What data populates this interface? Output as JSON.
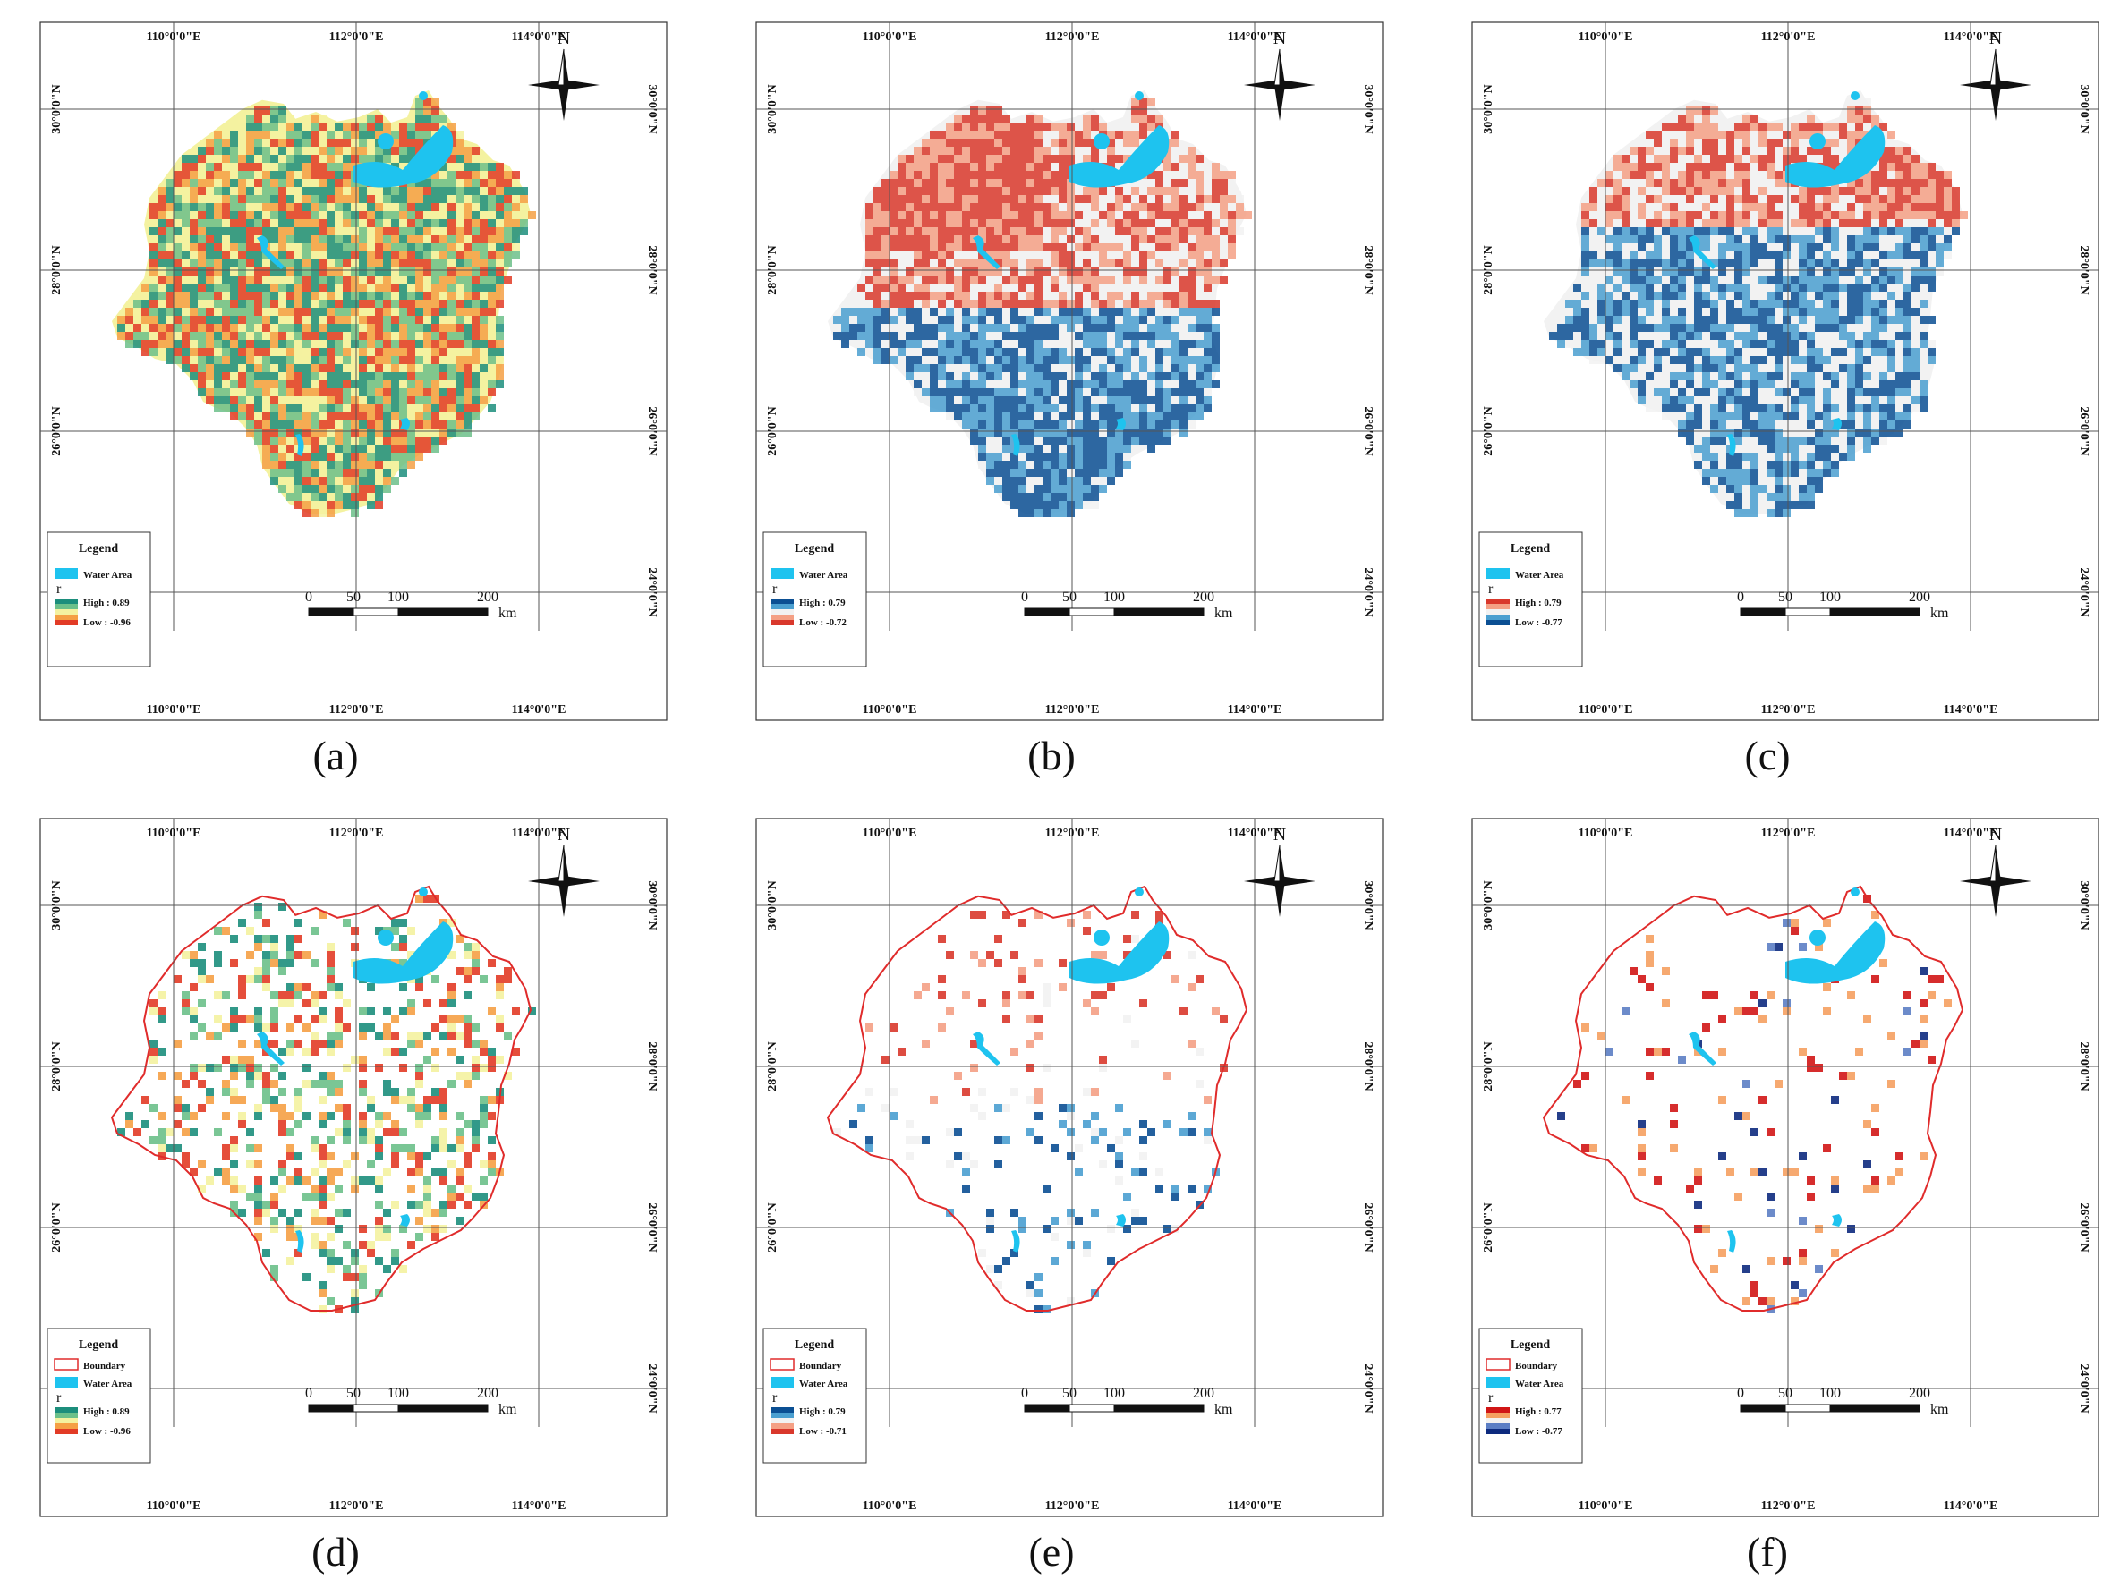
{
  "axes": {
    "x_ticks": [
      "110°0'0\"E",
      "112°0'0\"E",
      "114°0'0\"E"
    ],
    "y_ticks": [
      "30°0'0\"N",
      "28°0'0\"N",
      "26°0'0\"N",
      "24°0'0\"N"
    ]
  },
  "north_label": "N",
  "legend": {
    "title": "Legend",
    "boundary_label": "Boundary",
    "water_label": "Water Area",
    "r_label": "r"
  },
  "scale_bar": {
    "ticks": [
      "0",
      "50",
      "100",
      "200"
    ],
    "unit": "km"
  },
  "colors": {
    "water": "#1ec3ef",
    "boundary": "#e02b2b",
    "grid": "#555555",
    "ramp_a": [
      "#1c8e7c",
      "#6cc08a",
      "#f4f2a0",
      "#f5a045",
      "#e23b26"
    ],
    "ramp_b": [
      "#0b4f93",
      "#4a9fd0",
      "#f2f2f2",
      "#f4a085",
      "#d9382c"
    ],
    "ramp_c": [
      "#d9382c",
      "#f4a085",
      "#f2f2f2",
      "#4a9fd0",
      "#0b4f93"
    ],
    "ramp_f": [
      "#d11616",
      "#f5a060",
      "#f4f2f0",
      "#5c7ec4",
      "#0d2a7e"
    ]
  },
  "panels": [
    {
      "label": "(a)",
      "high": "High : 0.89",
      "low": "Low : -0.96",
      "ramp": "ramp_a",
      "has_boundary": false,
      "density": 1.0
    },
    {
      "label": "(b)",
      "high": "High : 0.79",
      "low": "Low : -0.72",
      "ramp": "ramp_b",
      "has_boundary": false,
      "density": 1.0
    },
    {
      "label": "(c)",
      "high": "High : 0.79",
      "low": "Low : -0.77",
      "ramp": "ramp_c",
      "has_boundary": false,
      "density": 1.0
    },
    {
      "label": "(d)",
      "high": "High : 0.89",
      "low": "Low : -0.96",
      "ramp": "ramp_a",
      "has_boundary": true,
      "density": 0.35
    },
    {
      "label": "(e)",
      "high": "High : 0.79",
      "low": "Low : -0.71",
      "ramp": "ramp_b",
      "has_boundary": true,
      "density": 0.12
    },
    {
      "label": "(f)",
      "high": "High : 0.77",
      "low": "Low : -0.77",
      "ramp": "ramp_f",
      "has_boundary": true,
      "density": 0.08
    }
  ]
}
